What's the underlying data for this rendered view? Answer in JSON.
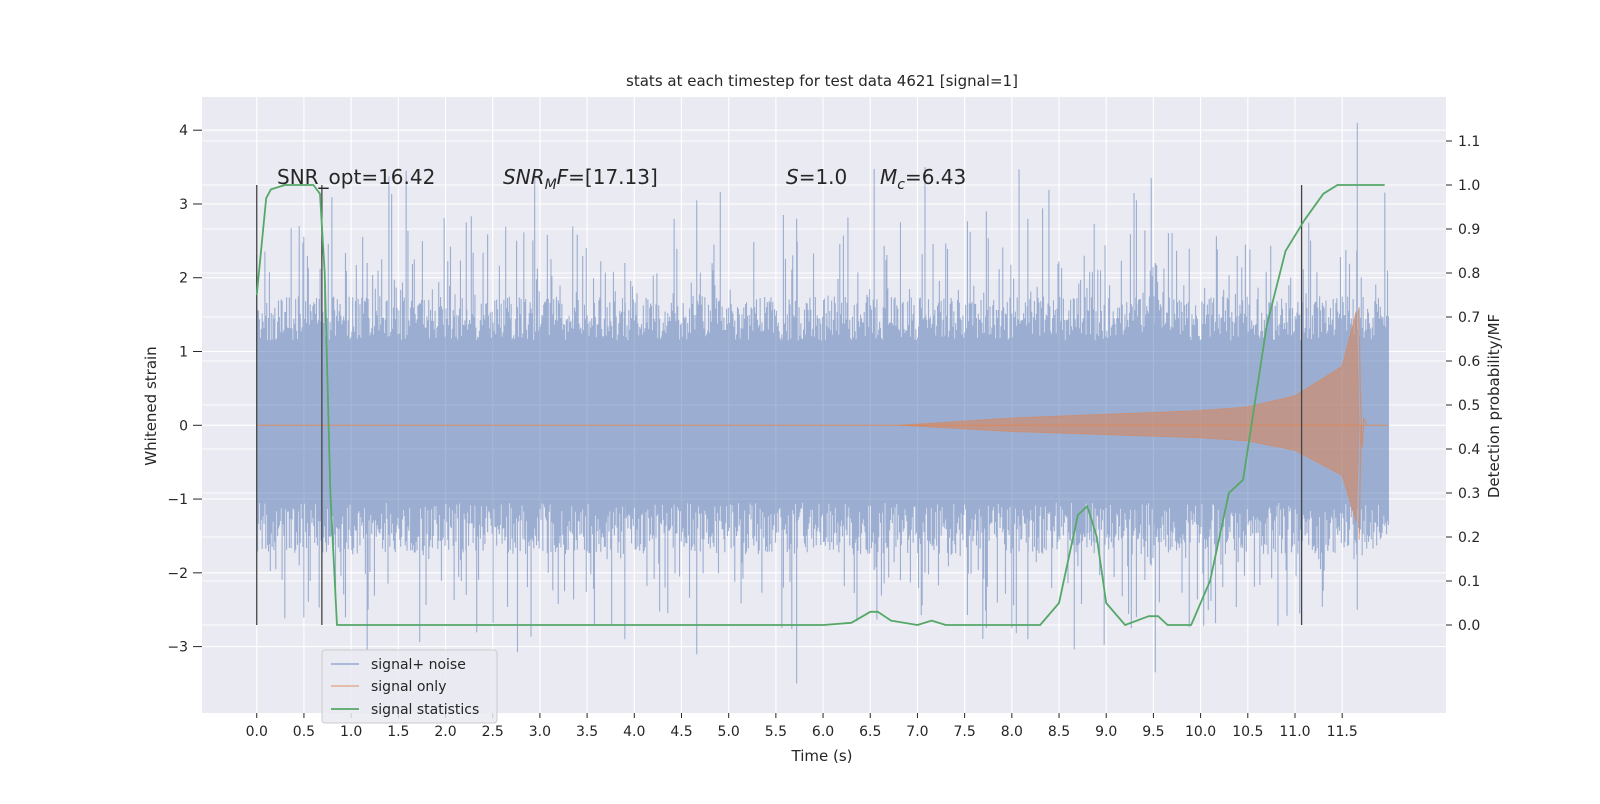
{
  "chart_data": {
    "type": "line",
    "title": "stats at each timestep for test data 4621 [signal=1]",
    "xlabel": "Time (s)",
    "ylabel_left": "Whitened strain",
    "ylabel_right": "Detection probability/MF",
    "xlim": [
      -0.58,
      12.6
    ],
    "ylim_left": [
      -3.9,
      4.45
    ],
    "ylim_right": [
      -0.2,
      1.2
    ],
    "x_ticks": [
      0.0,
      0.5,
      1.0,
      1.5,
      2.0,
      2.5,
      3.0,
      3.5,
      4.0,
      4.5,
      5.0,
      5.5,
      6.0,
      6.5,
      7.0,
      7.5,
      8.0,
      8.5,
      9.0,
      9.5,
      10.0,
      10.5,
      11.0,
      11.5
    ],
    "x_tick_labels": [
      "0.0",
      "0.5",
      "1.0",
      "1.5",
      "2.0",
      "2.5",
      "3.0",
      "3.5",
      "4.0",
      "4.5",
      "5.0",
      "5.5",
      "6.0",
      "6.5",
      "7.0",
      "7.5",
      "8.0",
      "8.5",
      "9.0",
      "9.5",
      "10.0",
      "10.5",
      "11.0",
      "11.5"
    ],
    "y_left_ticks": [
      -3,
      -2,
      -1,
      0,
      1,
      2,
      3,
      4
    ],
    "y_left_tick_labels": [
      "−3",
      "−2",
      "−1",
      "0",
      "1",
      "2",
      "3",
      "4"
    ],
    "y_right_ticks": [
      0.0,
      0.1,
      0.2,
      0.3,
      0.4,
      0.5,
      0.6,
      0.7,
      0.8,
      0.9,
      1.0,
      1.1
    ],
    "y_right_tick_labels": [
      "0.0",
      "0.1",
      "0.2",
      "0.3",
      "0.4",
      "0.5",
      "0.6",
      "0.7",
      "0.8",
      "0.9",
      "1.0",
      "1.1"
    ],
    "grid": true,
    "legend_position": "lower-left",
    "annotations": [
      "SNR_opt=16.42",
      "SNR_MF=[17.13]",
      "S=1.0",
      "M_c=6.43"
    ],
    "vertical_lines": [
      0.0,
      0.69,
      11.07
    ],
    "series": [
      {
        "name": "signal+ noise",
        "color": "#4c72b0",
        "axis": "left",
        "x_range": [
          0.0,
          11.99
        ],
        "typical_band": [
          -1.4,
          1.45
        ],
        "peak_max": 4.1,
        "peak_min": -3.5
      },
      {
        "name": "signal only",
        "color": "#dd8452",
        "axis": "left",
        "chirp": {
          "t_onset": 6.8,
          "t_merger": 11.68,
          "amp_envelope": [
            [
              6.8,
              0.0
            ],
            [
              8.0,
              0.1
            ],
            [
              9.0,
              0.15
            ],
            [
              10.0,
              0.2
            ],
            [
              10.5,
              0.25
            ],
            [
              11.0,
              0.4
            ],
            [
              11.5,
              0.8
            ],
            [
              11.66,
              1.6
            ]
          ]
        }
      },
      {
        "name": "signal statistics",
        "color": "#55a868",
        "axis": "right",
        "x": [
          0.0,
          0.1,
          0.15,
          0.3,
          0.5,
          0.6,
          0.67,
          0.72,
          0.78,
          0.85,
          0.9,
          1.2,
          2.0,
          3.0,
          4.0,
          5.0,
          5.5,
          6.0,
          6.3,
          6.5,
          6.58,
          6.72,
          7.0,
          7.15,
          7.3,
          8.0,
          8.3,
          8.5,
          8.6,
          8.7,
          8.8,
          8.9,
          9.0,
          9.2,
          9.45,
          9.55,
          9.65,
          9.9,
          10.1,
          10.3,
          10.45,
          10.7,
          10.9,
          11.1,
          11.3,
          11.45,
          11.6,
          11.75,
          11.95
        ],
        "y": [
          0.75,
          0.97,
          0.99,
          1.0,
          1.0,
          1.0,
          0.98,
          0.8,
          0.3,
          0.0,
          0.0,
          0.0,
          0.0,
          0.0,
          0.0,
          0.0,
          0.0,
          0.0,
          0.005,
          0.03,
          0.03,
          0.01,
          0.0,
          0.01,
          0.0,
          0.0,
          0.0,
          0.05,
          0.15,
          0.25,
          0.27,
          0.2,
          0.05,
          0.0,
          0.02,
          0.02,
          0.0,
          0.0,
          0.1,
          0.3,
          0.33,
          0.68,
          0.85,
          0.92,
          0.98,
          1.0,
          1.0,
          1.0,
          1.0
        ]
      }
    ]
  }
}
